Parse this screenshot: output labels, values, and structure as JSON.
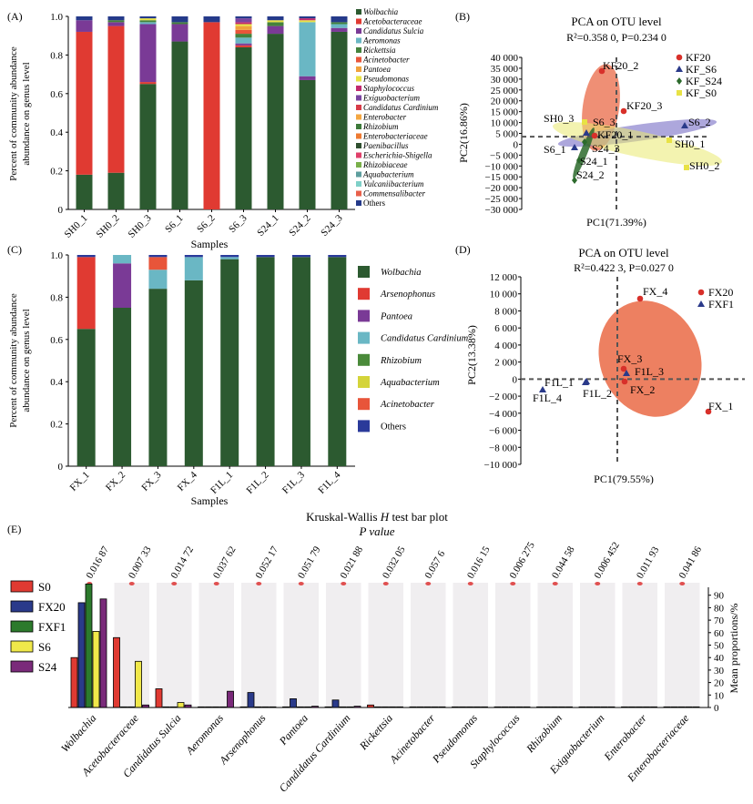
{
  "colors": {
    "Wolbachia": "#2c5a30",
    "Acetobacteraceae": "#e03a32",
    "Candidatus Sulcia": "#7a3a96",
    "Aeromonas": "#6ab7c4",
    "Rickettsia": "#44823c",
    "Acinetobacter": "#e8553a",
    "Pantoea": "#f0a23c",
    "Pseudomonas": "#e8e245",
    "Staphylococcus": "#c2296e",
    "Exiguobacterium": "#7a44a0",
    "Candidatus Cardinium": "#d83b48",
    "Enterobacter": "#f4a741",
    "Rhizobium": "#3d7a3a",
    "Enterobacteriaceae": "#ee7a32",
    "Paenibacillus": "#2f4f2f",
    "Escherichia-Shigella": "#e0406a",
    "Rhizobiaceae": "#7ab04a",
    "Aquabacterium": "#5e9e9e",
    "Vulcaniibacterium": "#7fd0c8",
    "Commensalibacter": "#e8604a",
    "Others": "#253a8a",
    "Arsenophonus": "#e03a32",
    "Pantoea_C": "#7a3a96",
    "Cardinium_C": "#6ab7c4",
    "Rhizobium_C": "#4a8a3a",
    "Aquabacterium_C": "#d4d43a",
    "Acinetobacter_C": "#e8553a",
    "Others_C": "#2a3a9a",
    "ellipse": "#e8603a",
    "KF20": "#d8302a",
    "KF_S6": "#2a3a8a",
    "KF_S24": "#2c6a2c",
    "KF_S0": "#e8e245",
    "FX20": "#d8302a",
    "FXF1": "#2a3a8a",
    "S0": "#e03a32",
    "FX20_E": "#2a3a8a",
    "FXF1_E": "#2c7a2c",
    "S6": "#f0e84a",
    "S24": "#7a2a7a",
    "panel_bg": "#f0eef0",
    "pdot": "#e05050"
  },
  "panel_labels": {
    "a": "(A)",
    "b": "(B)",
    "c": "(C)",
    "d": "(D)",
    "e": "(E)"
  },
  "chart_data": [
    {
      "panel": "A",
      "type": "bar",
      "stacked": true,
      "xlabel": "Samples",
      "ylabel": "Percent of community abundance on genus level",
      "ylim": [
        0,
        1
      ],
      "yticks": [
        "0",
        "0.2",
        "0.4",
        "0.6",
        "0.8",
        "1.0"
      ],
      "categories": [
        "SH0_1",
        "SH0_2",
        "SH0_3",
        "S6_1",
        "S6_2",
        "S6_3",
        "S24_1",
        "S24_2",
        "S24_3"
      ],
      "legend": [
        "Wolbachia",
        "Acetobacteraceae",
        "Candidatus Sulcia",
        "Aeromonas",
        "Rickettsia",
        "Acinetobacter",
        "Pantoea",
        "Pseudomonas",
        "Staphylococcus",
        "Exiguobacterium",
        "Candidatus Cardinium",
        "Enterobacter",
        "Rhizobium",
        "Enterobacteriaceae",
        "Paenibacillus",
        "Escherichia-Shigella",
        "Rhizobiaceae",
        "Aquabacterium",
        "Vulcaniibacterium",
        "Commensalibacter",
        "Others"
      ],
      "series": [
        {
          "name": "Wolbachia",
          "values": [
            0.18,
            0.19,
            0.65,
            0.87,
            0.0,
            0.84,
            0.91,
            0.67,
            0.92
          ]
        },
        {
          "name": "Acetobacteraceae",
          "values": [
            0.74,
            0.76,
            0.01,
            0.0,
            0.97,
            0.01,
            0.0,
            0.0,
            0.0
          ]
        },
        {
          "name": "Candidatus Sulcia",
          "values": [
            0.06,
            0.02,
            0.3,
            0.09,
            0.0,
            0.01,
            0.04,
            0.02,
            0.02
          ]
        },
        {
          "name": "Aeromonas",
          "values": [
            0.0,
            0.0,
            0.01,
            0.0,
            0.0,
            0.03,
            0.0,
            0.28,
            0.02
          ]
        },
        {
          "name": "Rickettsia",
          "values": [
            0.0,
            0.01,
            0.01,
            0.01,
            0.0,
            0.02,
            0.02,
            0.0,
            0.01
          ]
        },
        {
          "name": "Acinetobacter",
          "values": [
            0.0,
            0.0,
            0.0,
            0.0,
            0.0,
            0.02,
            0.0,
            0.0,
            0.0
          ]
        },
        {
          "name": "Pantoea",
          "values": [
            0.0,
            0.0,
            0.0,
            0.0,
            0.0,
            0.02,
            0.0,
            0.0,
            0.0
          ]
        },
        {
          "name": "Pseudomonas",
          "values": [
            0.0,
            0.0,
            0.01,
            0.0,
            0.0,
            0.01,
            0.01,
            0.01,
            0.0
          ]
        },
        {
          "name": "Staphylococcus",
          "values": [
            0.0,
            0.0,
            0.0,
            0.0,
            0.0,
            0.01,
            0.0,
            0.01,
            0.0
          ]
        },
        {
          "name": "Exiguobacterium",
          "values": [
            0.0,
            0.0,
            0.0,
            0.0,
            0.0,
            0.02,
            0.0,
            0.0,
            0.0
          ]
        },
        {
          "name": "Others",
          "values": [
            0.02,
            0.02,
            0.01,
            0.03,
            0.03,
            0.01,
            0.02,
            0.01,
            0.03
          ]
        }
      ]
    },
    {
      "panel": "B",
      "type": "scatter",
      "title": "PCA on OTU level",
      "stat": "R²=0.358 0, P=0.234 0",
      "xlabel": "PC1(71.39%)",
      "ylabel": "PC2(16.86%)",
      "ylim": [
        -30000,
        40000
      ],
      "yticks": [
        "40 000",
        "35 000",
        "30 000",
        "25 000",
        "20 000",
        "15 000",
        "10 000",
        "5 000",
        "0",
        "−5 000",
        "−10 000",
        "−15 000",
        "−20 000",
        "−25 000",
        "−30 000"
      ],
      "legend": [
        "KF20",
        "KF_S6",
        "KF_S24",
        "KF_S0"
      ],
      "points": [
        {
          "label": "KF20_2",
          "group": "KF20",
          "x": 3,
          "y": 35000
        },
        {
          "label": "KF20_3",
          "group": "KF20",
          "x": 12,
          "y": 15000
        },
        {
          "label": "KF20_1",
          "group": "KF20",
          "x": -8,
          "y": 3500
        },
        {
          "label": "S6_2",
          "group": "KF_S6",
          "x": 90,
          "y": 9000
        },
        {
          "label": "S6_3",
          "group": "KF_S6",
          "x": -25,
          "y": 5000
        },
        {
          "label": "S6_1",
          "group": "KF_S6",
          "x": -38,
          "y": -2500
        },
        {
          "label": "S24_3",
          "group": "KF_S24",
          "x": -28,
          "y": 0
        },
        {
          "label": "S24_1",
          "group": "KF_S24",
          "x": -38,
          "y": -8000
        },
        {
          "label": "S24_2",
          "group": "KF_S24",
          "x": -50,
          "y": -17000
        },
        {
          "label": "SH0_3",
          "group": "KF_S0",
          "x": -45,
          "y": 10000
        },
        {
          "label": "SH0_1",
          "group": "KF_S0",
          "x": 55,
          "y": 2000
        },
        {
          "label": "SH0_2",
          "group": "KF_S0",
          "x": 90,
          "y": -10000
        }
      ]
    },
    {
      "panel": "C",
      "type": "bar",
      "stacked": true,
      "xlabel": "Samples",
      "ylabel": "Percent of community abundance on genus level",
      "ylim": [
        0,
        1
      ],
      "yticks": [
        "0",
        "0.2",
        "0.4",
        "0.6",
        "0.8",
        "1.0"
      ],
      "categories": [
        "FX_1",
        "FX_2",
        "FX_3",
        "FX_4",
        "F1L_1",
        "F1L_2",
        "F1L_3",
        "F1L_4"
      ],
      "legend": [
        "Wolbachia",
        "Arsenophonus",
        "Pantoea",
        "Candidatus Cardinium",
        "Rhizobium",
        "Aquabacterium",
        "Acinetobacter",
        "Others"
      ],
      "series": [
        {
          "name": "Wolbachia",
          "values": [
            0.65,
            0.75,
            0.84,
            0.88,
            0.98,
            0.99,
            0.99,
            0.99
          ]
        },
        {
          "name": "Arsenophonus",
          "values": [
            0.34,
            0.0,
            0.0,
            0.0,
            0.0,
            0.0,
            0.0,
            0.0
          ]
        },
        {
          "name": "Pantoea",
          "values": [
            0.0,
            0.21,
            0.0,
            0.0,
            0.0,
            0.0,
            0.0,
            0.0
          ]
        },
        {
          "name": "Candidatus Cardinium",
          "values": [
            0.0,
            0.04,
            0.09,
            0.11,
            0.01,
            0.0,
            0.0,
            0.0
          ]
        },
        {
          "name": "Acinetobacter",
          "values": [
            0.0,
            0.0,
            0.06,
            0.0,
            0.0,
            0.0,
            0.0,
            0.0
          ]
        },
        {
          "name": "Others",
          "values": [
            0.01,
            0.0,
            0.01,
            0.01,
            0.01,
            0.01,
            0.01,
            0.01
          ]
        }
      ]
    },
    {
      "panel": "D",
      "type": "scatter",
      "title": "PCA on OTU level",
      "stat": "R²=0.422 3, P=0.027 0",
      "xlabel": "PC1(79.55%)",
      "ylabel": "PC2(13.38%)",
      "ylim": [
        -10000,
        12000
      ],
      "yticks": [
        "12 000",
        "10 000",
        "8 000",
        "6 000",
        "4 000",
        "2 000",
        "0",
        "−2 000",
        "−4 000",
        "−6 000",
        "−8 000",
        "−10 000"
      ],
      "legend": [
        "FX20",
        "FXF1"
      ],
      "points": [
        {
          "label": "FX_4",
          "group": "FX20",
          "x": 25,
          "y": 9300
        },
        {
          "label": "FX_3",
          "group": "FX20",
          "x": 5,
          "y": 300
        },
        {
          "label": "FX_2",
          "group": "FX20",
          "x": 8,
          "y": -1000
        },
        {
          "label": "FX_1",
          "group": "FX20",
          "x": 90,
          "y": -4500
        },
        {
          "label": "F1L_3",
          "group": "FXF1",
          "x": 6,
          "y": -100
        },
        {
          "label": "F1L_1",
          "group": "FXF1",
          "x": -25,
          "y": -800
        },
        {
          "label": "F1L_2",
          "group": "FXF1",
          "x": -18,
          "y": -1000
        },
        {
          "label": "F1L_4",
          "group": "FXF1",
          "x": -80,
          "y": -1800
        }
      ]
    },
    {
      "panel": "E",
      "type": "bar",
      "title": "Kruskal-Wallis H test bar plot",
      "subtitle": "P value",
      "ylabel": "Mean proportions/%",
      "ylim": [
        0,
        100
      ],
      "yticks": [
        "0",
        "10",
        "20",
        "30",
        "40",
        "50",
        "60",
        "70",
        "80",
        "90"
      ],
      "categories": [
        "Wolbachia",
        "Acetobacteraceae",
        "Candidatus Sulcia",
        "Aeromonas",
        "Arsenophonus",
        "Pantoea",
        "Candidatus Cardinium",
        "Rickettsia",
        "Acinetobacter",
        "Pseudomonas",
        "Staphylococcus",
        "Rhizobium",
        "Exiguobacterium",
        "Enterobacter",
        "Enterobacteriaceae"
      ],
      "pvalues": [
        "0.016 87",
        "0.007 33",
        "0.014 72",
        "0.037 62",
        "0.052 17",
        "0.051 79",
        "0.021 88",
        "0.032 05",
        "0.057 6",
        "0.016 15",
        "0.006 275",
        "0.044 58",
        "0.006 452",
        "0.011 93",
        "0.041 86"
      ],
      "legend": [
        "S0",
        "FX20",
        "FXF1",
        "S6",
        "S24"
      ],
      "series": [
        {
          "name": "S0",
          "values": [
            40,
            56,
            15,
            0.5,
            0.5,
            0.5,
            0.5,
            2,
            0.5,
            0.5,
            0.5,
            0.5,
            0.5,
            0.5,
            0.5
          ]
        },
        {
          "name": "FX20",
          "values": [
            84,
            0.5,
            0.5,
            0.5,
            12,
            7,
            6,
            0.5,
            0.5,
            0.5,
            0.5,
            0.5,
            0.5,
            0.5,
            0.5
          ]
        },
        {
          "name": "FXF1",
          "values": [
            99,
            0.5,
            0.5,
            0.5,
            0.5,
            0.5,
            0.5,
            0.5,
            0.5,
            0.5,
            0.5,
            0.5,
            0.5,
            0.5,
            0.5
          ]
        },
        {
          "name": "S6",
          "values": [
            61,
            37,
            4,
            0.5,
            0.5,
            0.5,
            0.5,
            0.5,
            0.5,
            0.5,
            0.5,
            0.5,
            0.5,
            0.5,
            0.5
          ]
        },
        {
          "name": "S24",
          "values": [
            87,
            2,
            2,
            13,
            0.5,
            1,
            1,
            0.5,
            0.5,
            0.5,
            0.5,
            0.5,
            0.5,
            0.5,
            0.5
          ]
        }
      ]
    }
  ]
}
